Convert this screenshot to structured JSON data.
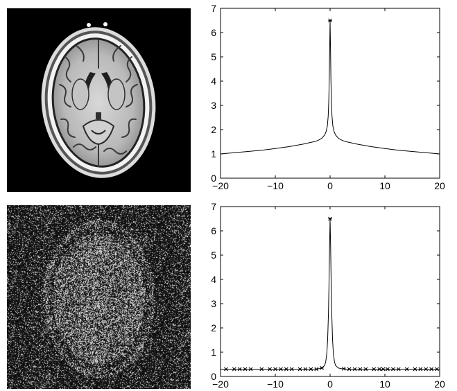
{
  "images": [
    {
      "name": "brain-mri-axial",
      "kind": "grayscale photograph"
    },
    {
      "name": "brain-mri-axial-noisy",
      "kind": "grayscale photograph"
    }
  ],
  "chart_data": [
    {
      "type": "line",
      "title": "",
      "xlabel": "",
      "ylabel": "",
      "xlim": [
        -20,
        20
      ],
      "ylim": [
        0,
        7
      ],
      "xticks": [
        -20,
        -10,
        0,
        10,
        20
      ],
      "yticks": [
        0,
        1,
        2,
        3,
        4,
        5,
        6,
        7
      ],
      "grid": false,
      "series": [
        {
          "x": [
            -20,
            -17.5,
            -15,
            -12.5,
            -10,
            -7.5,
            -5,
            -4,
            -3,
            -2.5,
            -2,
            -1.5,
            -1,
            -0.75,
            -0.5,
            -0.35,
            -0.25,
            -0.15,
            -0.08,
            0,
            0.08,
            0.15,
            0.25,
            0.35,
            0.5,
            0.75,
            1,
            1.5,
            2,
            2.5,
            3,
            4,
            5,
            7.5,
            10,
            12.5,
            15,
            17.5,
            20
          ],
          "y": [
            1.0,
            1.05,
            1.1,
            1.15,
            1.22,
            1.3,
            1.4,
            1.45,
            1.5,
            1.53,
            1.58,
            1.65,
            1.78,
            1.9,
            2.15,
            2.55,
            3.1,
            4.1,
            5.3,
            6.5,
            5.3,
            4.1,
            3.1,
            2.55,
            2.15,
            1.9,
            1.78,
            1.65,
            1.58,
            1.53,
            1.5,
            1.45,
            1.4,
            1.3,
            1.22,
            1.15,
            1.1,
            1.05,
            1.0
          ]
        }
      ],
      "markers": [
        {
          "x": 0,
          "y": 6.5,
          "symbol": "x"
        }
      ]
    },
    {
      "type": "line",
      "title": "",
      "xlabel": "",
      "ylabel": "",
      "xlim": [
        -20,
        20
      ],
      "ylim": [
        0,
        7
      ],
      "xticks": [
        -20,
        -10,
        0,
        10,
        20
      ],
      "yticks": [
        0,
        1,
        2,
        3,
        4,
        5,
        6,
        7
      ],
      "grid": false,
      "series": [
        {
          "x": [
            -20,
            -10,
            -5,
            -3,
            -2,
            -1.5,
            -1,
            -0.8,
            -0.6,
            -0.45,
            -0.3,
            -0.2,
            -0.1,
            0,
            0.1,
            0.2,
            0.3,
            0.45,
            0.6,
            0.8,
            1,
            1.5,
            2,
            3,
            5,
            10,
            20
          ],
          "y": [
            0.3,
            0.3,
            0.3,
            0.3,
            0.32,
            0.35,
            0.45,
            0.6,
            0.95,
            1.5,
            2.6,
            3.8,
            5.3,
            6.5,
            5.3,
            3.8,
            2.6,
            1.5,
            0.95,
            0.6,
            0.45,
            0.35,
            0.32,
            0.3,
            0.3,
            0.3,
            0.3
          ]
        }
      ],
      "markers": [
        {
          "x": 0,
          "y": 6.5,
          "symbol": "x"
        },
        {
          "x": -19,
          "y": 0.3,
          "symbol": "x"
        },
        {
          "x": -17.5,
          "y": 0.3,
          "symbol": "x"
        },
        {
          "x": -16.5,
          "y": 0.3,
          "symbol": "x"
        },
        {
          "x": -15.5,
          "y": 0.3,
          "symbol": "x"
        },
        {
          "x": -14.5,
          "y": 0.3,
          "symbol": "x"
        },
        {
          "x": -12.5,
          "y": 0.3,
          "symbol": "x"
        },
        {
          "x": -11,
          "y": 0.3,
          "symbol": "x"
        },
        {
          "x": -10,
          "y": 0.3,
          "symbol": "x"
        },
        {
          "x": -9,
          "y": 0.3,
          "symbol": "x"
        },
        {
          "x": -8,
          "y": 0.3,
          "symbol": "x"
        },
        {
          "x": -7,
          "y": 0.3,
          "symbol": "x"
        },
        {
          "x": -5.5,
          "y": 0.3,
          "symbol": "x"
        },
        {
          "x": -4.5,
          "y": 0.3,
          "symbol": "x"
        },
        {
          "x": -3.5,
          "y": 0.3,
          "symbol": "x"
        },
        {
          "x": -2.5,
          "y": 0.3,
          "symbol": "x"
        },
        {
          "x": -1.5,
          "y": 0.35,
          "symbol": "x"
        },
        {
          "x": 2.5,
          "y": 0.32,
          "symbol": "x"
        },
        {
          "x": 3.5,
          "y": 0.3,
          "symbol": "x"
        },
        {
          "x": 4.5,
          "y": 0.3,
          "symbol": "x"
        },
        {
          "x": 5.5,
          "y": 0.3,
          "symbol": "x"
        },
        {
          "x": 6.5,
          "y": 0.3,
          "symbol": "x"
        },
        {
          "x": 8,
          "y": 0.3,
          "symbol": "x"
        },
        {
          "x": 9,
          "y": 0.3,
          "symbol": "x"
        },
        {
          "x": 9.7,
          "y": 0.3,
          "symbol": "x"
        },
        {
          "x": 10.5,
          "y": 0.3,
          "symbol": "x"
        },
        {
          "x": 11.5,
          "y": 0.3,
          "symbol": "x"
        },
        {
          "x": 12.5,
          "y": 0.3,
          "symbol": "x"
        },
        {
          "x": 14,
          "y": 0.3,
          "symbol": "x"
        },
        {
          "x": 15.5,
          "y": 0.3,
          "symbol": "x"
        },
        {
          "x": 16.5,
          "y": 0.3,
          "symbol": "x"
        },
        {
          "x": 17.5,
          "y": 0.3,
          "symbol": "x"
        },
        {
          "x": 18.5,
          "y": 0.3,
          "symbol": "x"
        },
        {
          "x": 19.5,
          "y": 0.3,
          "symbol": "x"
        }
      ]
    }
  ]
}
